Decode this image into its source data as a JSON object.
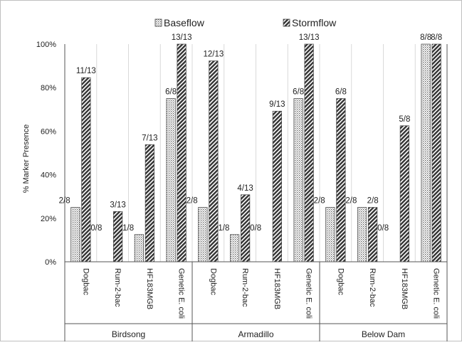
{
  "chart_data": {
    "type": "bar",
    "title": "",
    "ylabel": "% Marker Presence",
    "ylim": [
      0,
      100
    ],
    "ytick_step": 20,
    "y_tick_suffix": "%",
    "legend_position": "top",
    "groups": [
      {
        "name": "Birdsong",
        "categories": [
          "Dogbac",
          "Rum-2-bac",
          "HF183MGB",
          "Genetic E. coli"
        ],
        "series": [
          {
            "name": "Baseflow",
            "values": [
              25,
              0,
              12.5,
              75
            ],
            "labels": [
              "2/8",
              "0/8",
              "1/8",
              "6/8"
            ]
          },
          {
            "name": "Stormflow",
            "values": [
              84.6,
              23.1,
              53.8,
              100
            ],
            "labels": [
              "11/13",
              "3/13",
              "7/13",
              "13/13"
            ]
          }
        ]
      },
      {
        "name": "Armadillo",
        "categories": [
          "Dogbac",
          "Rum-2-bac",
          "HF183MGB",
          "Genetic E. coli"
        ],
        "series": [
          {
            "name": "Baseflow",
            "values": [
              25,
              12.5,
              0,
              75
            ],
            "labels": [
              "2/8",
              "1/8",
              "0/8",
              "6/8"
            ]
          },
          {
            "name": "Stormflow",
            "values": [
              92.3,
              30.8,
              69.2,
              100
            ],
            "labels": [
              "12/13",
              "4/13",
              "9/13",
              "13/13"
            ]
          }
        ]
      },
      {
        "name": "Below Dam",
        "categories": [
          "Dogbac",
          "Rum-2-bac",
          "HF183MGB",
          "Genetic E. coli"
        ],
        "series": [
          {
            "name": "Baseflow",
            "values": [
              25,
              25,
              0,
              100
            ],
            "labels": [
              "2/8",
              "2/8",
              "0/8",
              "8/8"
            ]
          },
          {
            "name": "Stormflow",
            "values": [
              75,
              25,
              62.5,
              100
            ],
            "labels": [
              "6/8",
              "2/8",
              "5/8",
              "8/8"
            ]
          }
        ]
      }
    ],
    "series_styles": {
      "Baseflow": {
        "pattern": "dots"
      },
      "Stormflow": {
        "pattern": "diagonal-hatch"
      }
    },
    "grid": {
      "vertical_lines": true,
      "horizontal_lines": false
    },
    "colors": {
      "axis": "#555555",
      "grid": "#d9d9d9",
      "bar_stroke": "#444444",
      "pattern_dark": "#333333"
    }
  }
}
